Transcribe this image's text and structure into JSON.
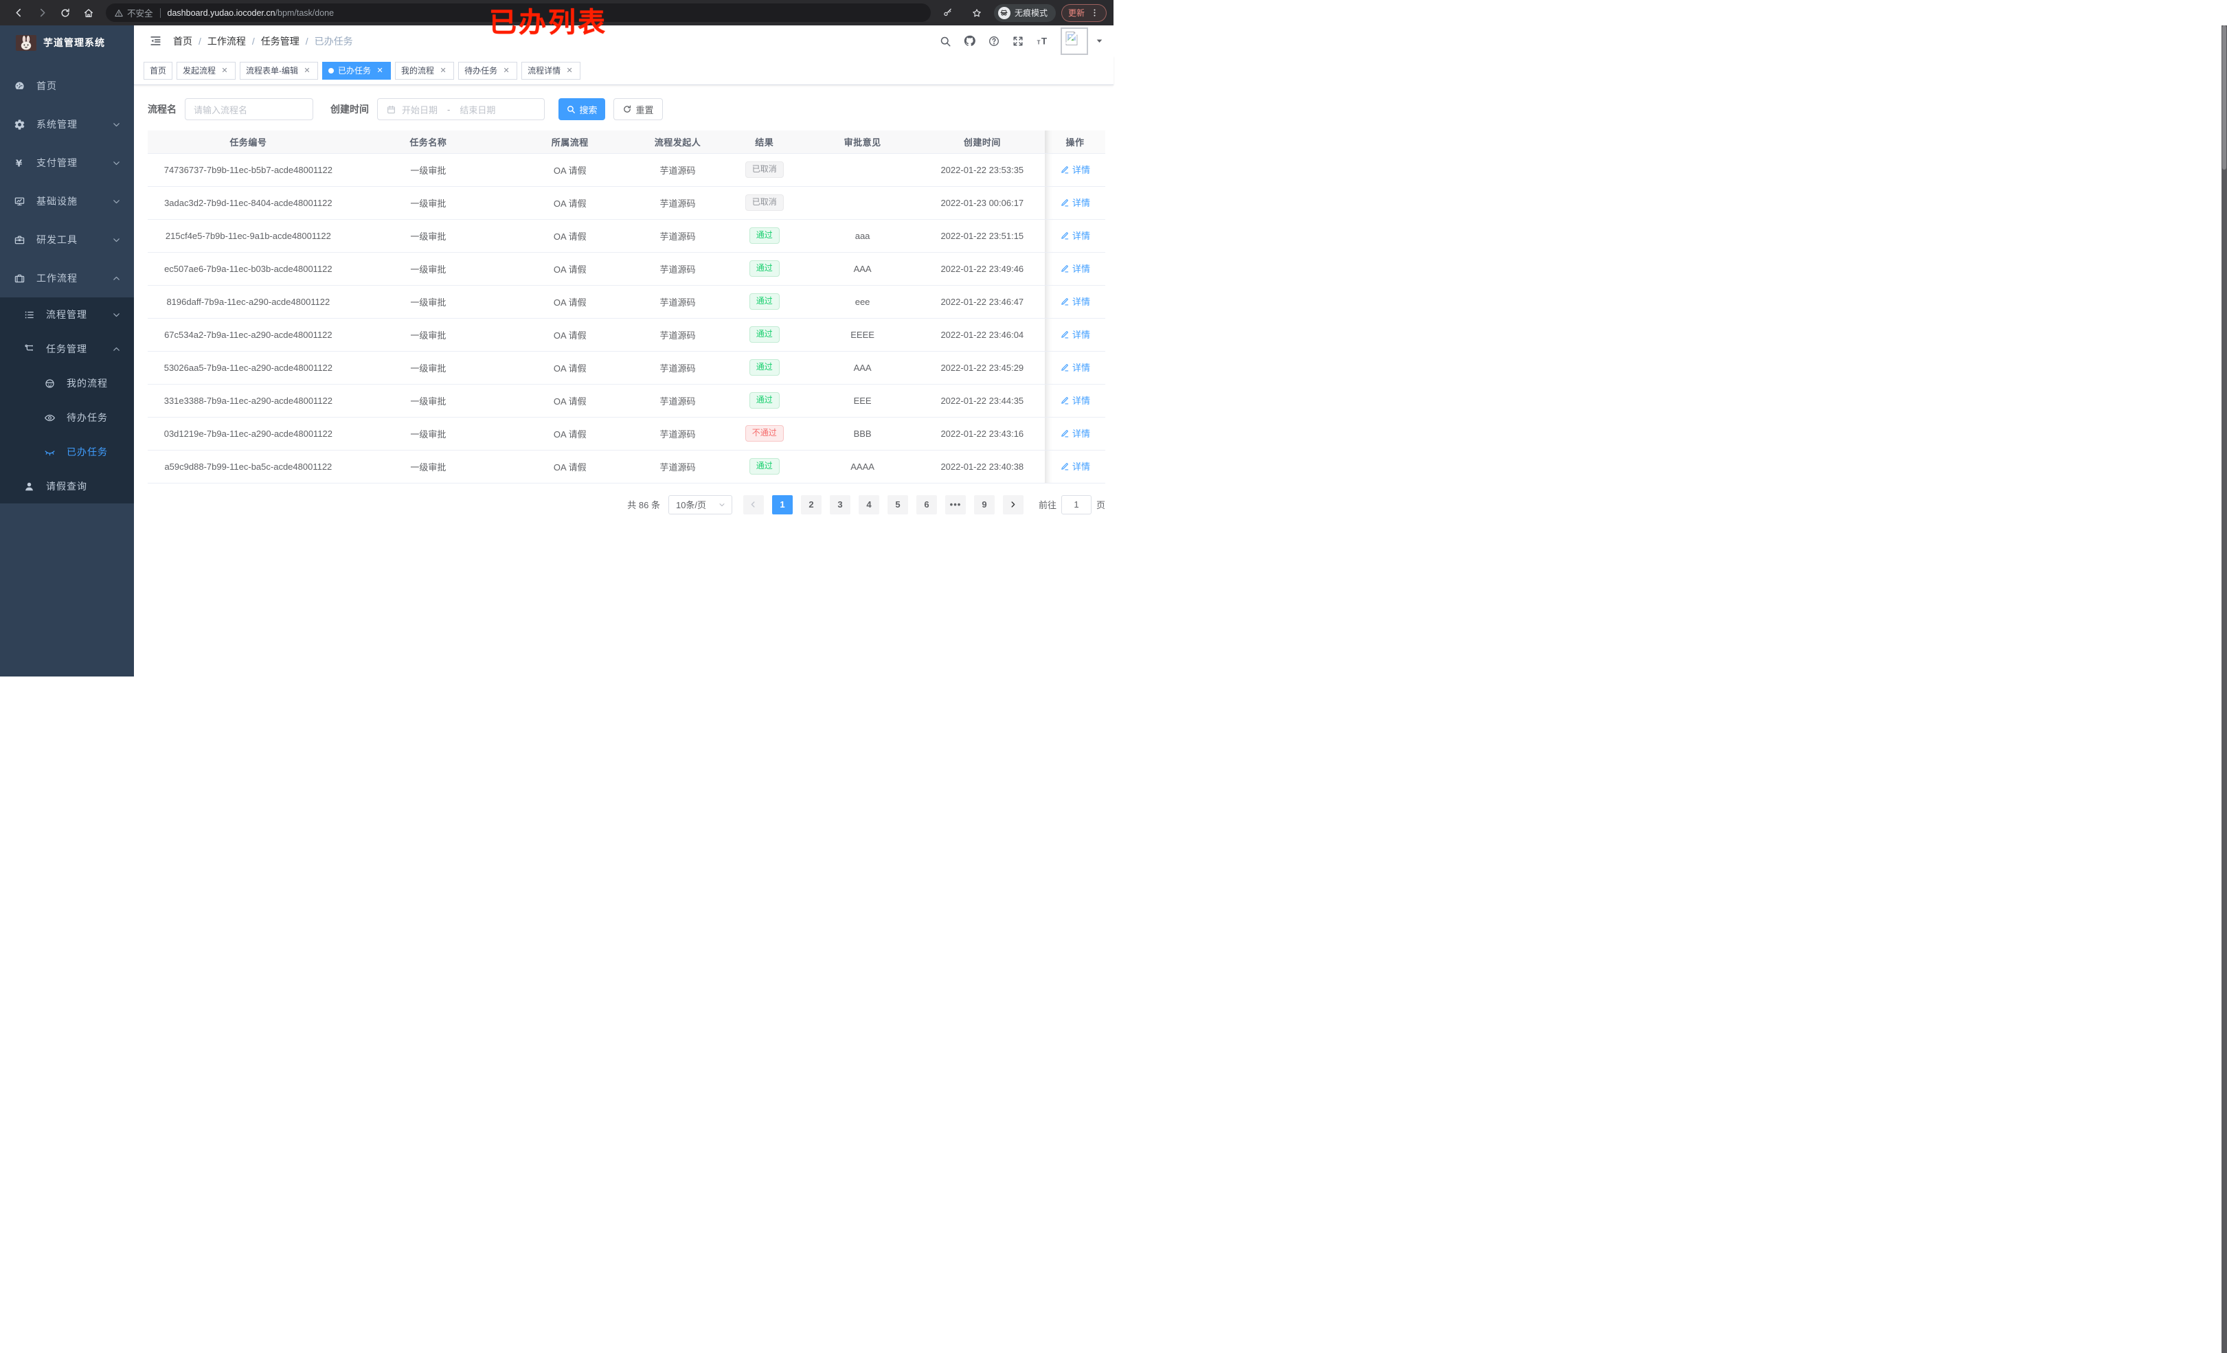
{
  "browser": {
    "security_label": "不安全",
    "url_host": "dashboard.yudao.iocoder.cn",
    "url_path": "/bpm/task/done",
    "incognito_label": "无痕模式",
    "update_label": "更新"
  },
  "overlay": {
    "text": "已办列表"
  },
  "sidebar": {
    "title": "芋道管理系统",
    "items": [
      {
        "label": "首页",
        "icon": "dashboard",
        "level": 0,
        "arrow": null,
        "sub": false,
        "active": false
      },
      {
        "label": "系统管理",
        "icon": "gear",
        "level": 0,
        "arrow": "down",
        "sub": false,
        "active": false
      },
      {
        "label": "支付管理",
        "icon": "yen",
        "level": 0,
        "arrow": "down",
        "sub": false,
        "active": false
      },
      {
        "label": "基础设施",
        "icon": "monitor",
        "level": 0,
        "arrow": "down",
        "sub": false,
        "active": false
      },
      {
        "label": "研发工具",
        "icon": "briefcase",
        "level": 0,
        "arrow": "down",
        "sub": false,
        "active": false
      },
      {
        "label": "工作流程",
        "icon": "toolbox",
        "level": 0,
        "arrow": "up",
        "sub": false,
        "active": false
      },
      {
        "label": "流程管理",
        "icon": "tree-list",
        "level": 1,
        "arrow": "down",
        "sub": true,
        "active": false
      },
      {
        "label": "任务管理",
        "icon": "flow",
        "level": 1,
        "arrow": "up",
        "sub": true,
        "active": false
      },
      {
        "label": "我的流程",
        "icon": "robot",
        "level": 2,
        "arrow": null,
        "sub": true,
        "active": false
      },
      {
        "label": "待办任务",
        "icon": "eye",
        "level": 2,
        "arrow": null,
        "sub": true,
        "active": false
      },
      {
        "label": "已办任务",
        "icon": "eye-closed",
        "level": 2,
        "arrow": null,
        "sub": true,
        "active": true
      },
      {
        "label": "请假查询",
        "icon": "person",
        "level": 1,
        "arrow": null,
        "sub": true,
        "active": false
      }
    ]
  },
  "breadcrumb": [
    "首页",
    "工作流程",
    "任务管理",
    "已办任务"
  ],
  "tabs": [
    {
      "label": "首页",
      "closable": false,
      "active": false
    },
    {
      "label": "发起流程",
      "closable": true,
      "active": false
    },
    {
      "label": "流程表单-编辑",
      "closable": true,
      "active": false
    },
    {
      "label": "已办任务",
      "closable": true,
      "active": true
    },
    {
      "label": "我的流程",
      "closable": true,
      "active": false
    },
    {
      "label": "待办任务",
      "closable": true,
      "active": false
    },
    {
      "label": "流程详情",
      "closable": true,
      "active": false
    }
  ],
  "filter": {
    "name_label": "流程名",
    "name_placeholder": "请输入流程名",
    "time_label": "创建时间",
    "start_placeholder": "开始日期",
    "range_separator": "-",
    "end_placeholder": "结束日期",
    "search_label": "搜索",
    "reset_label": "重置"
  },
  "table": {
    "columns": [
      "任务编号",
      "任务名称",
      "所属流程",
      "流程发起人",
      "结果",
      "审批意见",
      "创建时间",
      "操作"
    ],
    "detail_label": "详情",
    "rows": [
      {
        "id": "74736737-7b9b-11ec-b5b7-acde48001122",
        "name": "一级审批",
        "process": "OA 请假",
        "initiator": "芋道源码",
        "result": "已取消",
        "result_type": "info",
        "comment": "",
        "time": "2022-01-22 23:53:35"
      },
      {
        "id": "3adac3d2-7b9d-11ec-8404-acde48001122",
        "name": "一级审批",
        "process": "OA 请假",
        "initiator": "芋道源码",
        "result": "已取消",
        "result_type": "info",
        "comment": "",
        "time": "2022-01-23 00:06:17"
      },
      {
        "id": "215cf4e5-7b9b-11ec-9a1b-acde48001122",
        "name": "一级审批",
        "process": "OA 请假",
        "initiator": "芋道源码",
        "result": "通过",
        "result_type": "success",
        "comment": "aaa",
        "time": "2022-01-22 23:51:15"
      },
      {
        "id": "ec507ae6-7b9a-11ec-b03b-acde48001122",
        "name": "一级审批",
        "process": "OA 请假",
        "initiator": "芋道源码",
        "result": "通过",
        "result_type": "success",
        "comment": "AAA",
        "time": "2022-01-22 23:49:46"
      },
      {
        "id": "8196daff-7b9a-11ec-a290-acde48001122",
        "name": "一级审批",
        "process": "OA 请假",
        "initiator": "芋道源码",
        "result": "通过",
        "result_type": "success",
        "comment": "eee",
        "time": "2022-01-22 23:46:47"
      },
      {
        "id": "67c534a2-7b9a-11ec-a290-acde48001122",
        "name": "一级审批",
        "process": "OA 请假",
        "initiator": "芋道源码",
        "result": "通过",
        "result_type": "success",
        "comment": "EEEE",
        "time": "2022-01-22 23:46:04"
      },
      {
        "id": "53026aa5-7b9a-11ec-a290-acde48001122",
        "name": "一级审批",
        "process": "OA 请假",
        "initiator": "芋道源码",
        "result": "通过",
        "result_type": "success",
        "comment": "AAA",
        "time": "2022-01-22 23:45:29"
      },
      {
        "id": "331e3388-7b9a-11ec-a290-acde48001122",
        "name": "一级审批",
        "process": "OA 请假",
        "initiator": "芋道源码",
        "result": "通过",
        "result_type": "success",
        "comment": "EEE",
        "time": "2022-01-22 23:44:35"
      },
      {
        "id": "03d1219e-7b9a-11ec-a290-acde48001122",
        "name": "一级审批",
        "process": "OA 请假",
        "initiator": "芋道源码",
        "result": "不通过",
        "result_type": "danger",
        "comment": "BBB",
        "time": "2022-01-22 23:43:16"
      },
      {
        "id": "a59c9d88-7b99-11ec-ba5c-acde48001122",
        "name": "一级审批",
        "process": "OA 请假",
        "initiator": "芋道源码",
        "result": "通过",
        "result_type": "success",
        "comment": "AAAA",
        "time": "2022-01-22 23:40:38"
      }
    ]
  },
  "pagination": {
    "total_label": "共 86 条",
    "page_size_label": "10条/页",
    "pages": [
      {
        "label": "1",
        "active": true
      },
      {
        "label": "2",
        "active": false
      },
      {
        "label": "3",
        "active": false
      },
      {
        "label": "4",
        "active": false
      },
      {
        "label": "5",
        "active": false
      },
      {
        "label": "6",
        "active": false
      },
      {
        "label": "•••",
        "active": false,
        "more": true
      },
      {
        "label": "9",
        "active": false
      }
    ],
    "jumper_prefix": "前往",
    "jumper_value": "1",
    "jumper_suffix": "页"
  },
  "colors": {
    "primary": "#409eff",
    "success": "#18cf6e",
    "danger": "#f56c6c",
    "info": "#909399",
    "sidebar_bg": "#304156",
    "submenu_bg": "#1f2d3d",
    "overlay_red": "#ff1e00"
  }
}
